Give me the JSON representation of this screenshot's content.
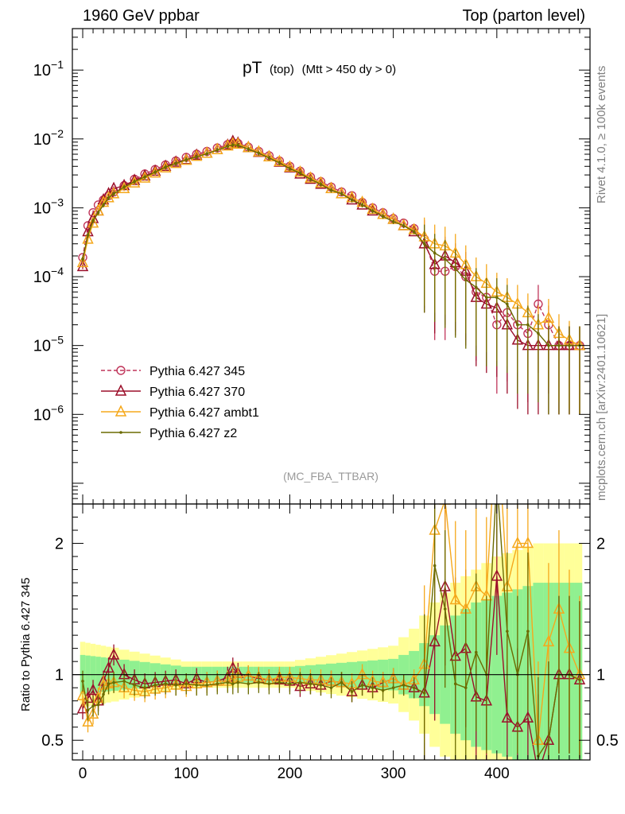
{
  "header": {
    "left": "1960 GeV ppbar",
    "right": "Top (parton level)"
  },
  "side_labels": {
    "rivet": "Rivet 4.1.0, ≥ 100k events",
    "mcplots": "mcplots.cern.ch [arXiv:2401.10621]"
  },
  "plot_title": {
    "main": "pT",
    "sub1": "(top)",
    "sub2": "(Mtt > 450 dy > 0)"
  },
  "analysis_tag": "(MC_FBA_TTBAR)",
  "ratio_ylabel": "Ratio to Pythia 6.427 345",
  "colors": {
    "p345": "#c0355a",
    "p370": "#9b0f2a",
    "ambt1": "#f5a81c",
    "z2": "#6b6b00",
    "band_inner": "#90f090",
    "band_outer": "#ffff99"
  },
  "chart_data": {
    "type": "line",
    "xlabel": "",
    "xlim": [
      -10,
      490
    ],
    "ylim": [
      5e-08,
      0.4
    ],
    "yscale": "log",
    "xticks": [
      0,
      100,
      200,
      300,
      400
    ],
    "yticks_labels": [
      "10−1",
      "10−2",
      "10−3",
      "10−4",
      "10−5",
      "10−6"
    ],
    "x": [
      0,
      5,
      10,
      15,
      20,
      25,
      30,
      40,
      50,
      60,
      70,
      80,
      90,
      100,
      110,
      120,
      130,
      140,
      145,
      150,
      160,
      170,
      180,
      190,
      200,
      210,
      220,
      230,
      240,
      250,
      260,
      270,
      280,
      290,
      300,
      310,
      320,
      330,
      340,
      350,
      360,
      370,
      380,
      390,
      400,
      410,
      420,
      430,
      440,
      450,
      460,
      470,
      480
    ],
    "series": [
      {
        "name": "Pythia 6.427 345",
        "key": "p345",
        "style": "dashed-circle",
        "values": [
          0.00019,
          0.00055,
          0.00085,
          0.0011,
          0.0013,
          0.0015,
          0.0017,
          0.0021,
          0.0026,
          0.0031,
          0.0036,
          0.0042,
          0.0048,
          0.0054,
          0.006,
          0.0066,
          0.0074,
          0.0083,
          0.0088,
          0.0086,
          0.0076,
          0.0066,
          0.0057,
          0.0048,
          0.004,
          0.0034,
          0.0028,
          0.0024,
          0.002,
          0.0017,
          0.0015,
          0.0012,
          0.001,
          0.00085,
          0.0007,
          0.0006,
          0.0005,
          0.00035,
          0.00012,
          0.00012,
          0.00014,
          0.0001,
          6e-05,
          5e-05,
          2e-05,
          3e-05,
          2e-05,
          1.5e-05,
          4e-05,
          2e-05,
          1e-05,
          1e-05,
          1e-05
        ]
      },
      {
        "name": "Pythia 6.427 370",
        "key": "p370",
        "style": "solid-triangle",
        "values": [
          0.00014,
          0.00045,
          0.0007,
          0.0009,
          0.0013,
          0.0016,
          0.0019,
          0.0021,
          0.0025,
          0.0029,
          0.0034,
          0.004,
          0.0046,
          0.005,
          0.0058,
          0.0062,
          0.007,
          0.0081,
          0.0092,
          0.0087,
          0.0075,
          0.0064,
          0.0055,
          0.0046,
          0.0038,
          0.0031,
          0.0026,
          0.0022,
          0.0019,
          0.0016,
          0.0013,
          0.0011,
          0.0009,
          0.0008,
          0.00068,
          0.00055,
          0.00045,
          0.0003,
          0.00015,
          0.0002,
          0.00016,
          0.00012,
          5e-05,
          4e-05,
          3.5e-05,
          2e-05,
          1.2e-05,
          1e-05,
          1e-05,
          1e-05,
          1e-05,
          1e-05,
          1e-05
        ]
      },
      {
        "name": "Pythia 6.427 ambt1",
        "key": "ambt1",
        "style": "solid-triangle",
        "values": [
          0.00016,
          0.00035,
          0.0006,
          0.0009,
          0.0012,
          0.0014,
          0.0016,
          0.0019,
          0.0023,
          0.0027,
          0.0032,
          0.0038,
          0.0044,
          0.0049,
          0.0056,
          0.0062,
          0.007,
          0.0079,
          0.0085,
          0.0084,
          0.0075,
          0.0065,
          0.0055,
          0.0047,
          0.0039,
          0.0033,
          0.0027,
          0.0023,
          0.0019,
          0.0016,
          0.0014,
          0.0012,
          0.00095,
          0.0008,
          0.00068,
          0.00055,
          0.00048,
          0.00038,
          0.0003,
          0.00028,
          0.00022,
          0.00015,
          0.0001,
          8e-05,
          6e-05,
          5e-05,
          4e-05,
          3e-05,
          2e-05,
          2.5e-05,
          1.5e-05,
          1.2e-05,
          1e-05
        ]
      },
      {
        "name": "Pythia 6.427 z2",
        "key": "z2",
        "style": "solid-dot",
        "values": [
          0.00018,
          0.0004,
          0.00065,
          0.00085,
          0.0011,
          0.0014,
          0.0016,
          0.002,
          0.0024,
          0.0028,
          0.0033,
          0.0039,
          0.0044,
          0.005,
          0.0055,
          0.0061,
          0.0069,
          0.0078,
          0.0082,
          0.0081,
          0.0071,
          0.0062,
          0.0053,
          0.0045,
          0.0037,
          0.0032,
          0.0026,
          0.0022,
          0.0018,
          0.0016,
          0.0013,
          0.0011,
          0.0009,
          0.00075,
          0.00063,
          0.00055,
          0.00045,
          0.0003,
          0.00022,
          0.00018,
          0.00013,
          9e-05,
          7e-05,
          5e-05,
          5e-05,
          4e-05,
          2e-05,
          2e-05,
          1.5e-05,
          1e-05,
          1e-05,
          1e-05,
          1e-05
        ]
      }
    ],
    "legend": [
      "Pythia 6.427 345",
      "Pythia 6.427 370",
      "Pythia 6.427 ambt1",
      "Pythia 6.427 z2"
    ],
    "ratio": {
      "ylabel": "Ratio to Pythia 6.427 345",
      "ylim": [
        0.35,
        2.3
      ],
      "yticks": [
        0.5,
        1,
        2
      ],
      "band_inner": [
        [
          0,
          0.15
        ],
        [
          100,
          0.06
        ],
        [
          200,
          0.06
        ],
        [
          300,
          0.12
        ],
        [
          320,
          0.18
        ],
        [
          340,
          0.3
        ],
        [
          360,
          0.45
        ],
        [
          380,
          0.55
        ],
        [
          400,
          0.6
        ],
        [
          440,
          0.7
        ],
        [
          480,
          0.7
        ]
      ],
      "band_outer": [
        [
          0,
          0.25
        ],
        [
          100,
          0.1
        ],
        [
          200,
          0.1
        ],
        [
          300,
          0.22
        ],
        [
          320,
          0.35
        ],
        [
          340,
          0.55
        ],
        [
          360,
          0.7
        ],
        [
          380,
          0.8
        ],
        [
          400,
          0.9
        ],
        [
          440,
          1.0
        ],
        [
          480,
          1.0
        ]
      ],
      "series": [
        {
          "name": "Pythia 6.427 370",
          "key": "p370",
          "values": [
            0.74,
            0.82,
            0.88,
            0.8,
            0.95,
            1.05,
            1.15,
            1.0,
            0.96,
            0.93,
            0.94,
            0.95,
            0.96,
            0.93,
            0.97,
            0.94,
            0.95,
            0.98,
            1.05,
            1.01,
            0.99,
            0.97,
            0.96,
            0.96,
            0.95,
            0.91,
            0.93,
            0.92,
            0.95,
            0.94,
            0.87,
            0.92,
            0.9,
            0.94,
            0.97,
            0.92,
            0.9,
            0.86,
            1.25,
            1.67,
            1.14,
            1.2,
            0.83,
            0.8,
            1.75,
            0.67,
            0.6,
            0.67,
            0.25,
            0.5,
            1.0,
            1.0,
            0.96
          ]
        },
        {
          "name": "Pythia 6.427 ambt1",
          "key": "ambt1",
          "values": [
            0.84,
            0.64,
            0.7,
            0.82,
            0.92,
            0.93,
            0.94,
            0.9,
            0.88,
            0.87,
            0.89,
            0.9,
            0.92,
            0.91,
            0.93,
            0.94,
            0.95,
            0.95,
            0.97,
            0.98,
            0.99,
            0.98,
            0.96,
            0.98,
            0.98,
            0.97,
            0.96,
            0.96,
            0.95,
            0.94,
            0.93,
            1.0,
            0.95,
            0.94,
            0.97,
            0.92,
            0.96,
            1.08,
            2.1,
            2.33,
            1.57,
            1.5,
            1.67,
            1.6,
            3.0,
            1.67,
            2.0,
            2.0,
            0.5,
            1.25,
            1.5,
            1.2,
            1.0
          ]
        },
        {
          "name": "Pythia 6.427 z2",
          "key": "z2",
          "values": [
            0.95,
            0.73,
            0.76,
            0.77,
            0.85,
            0.93,
            0.94,
            0.95,
            0.92,
            0.9,
            0.92,
            0.93,
            0.92,
            0.93,
            0.92,
            0.92,
            0.93,
            0.94,
            0.93,
            0.94,
            0.93,
            0.94,
            0.93,
            0.94,
            0.93,
            0.94,
            0.93,
            0.92,
            0.9,
            0.94,
            0.87,
            0.92,
            0.9,
            0.88,
            0.9,
            0.92,
            0.9,
            0.86,
            1.83,
            1.5,
            0.93,
            0.9,
            1.17,
            1.0,
            2.5,
            1.33,
            1.0,
            1.33,
            0.38,
            0.5,
            1.0,
            1.0,
            0.96
          ]
        }
      ]
    }
  }
}
